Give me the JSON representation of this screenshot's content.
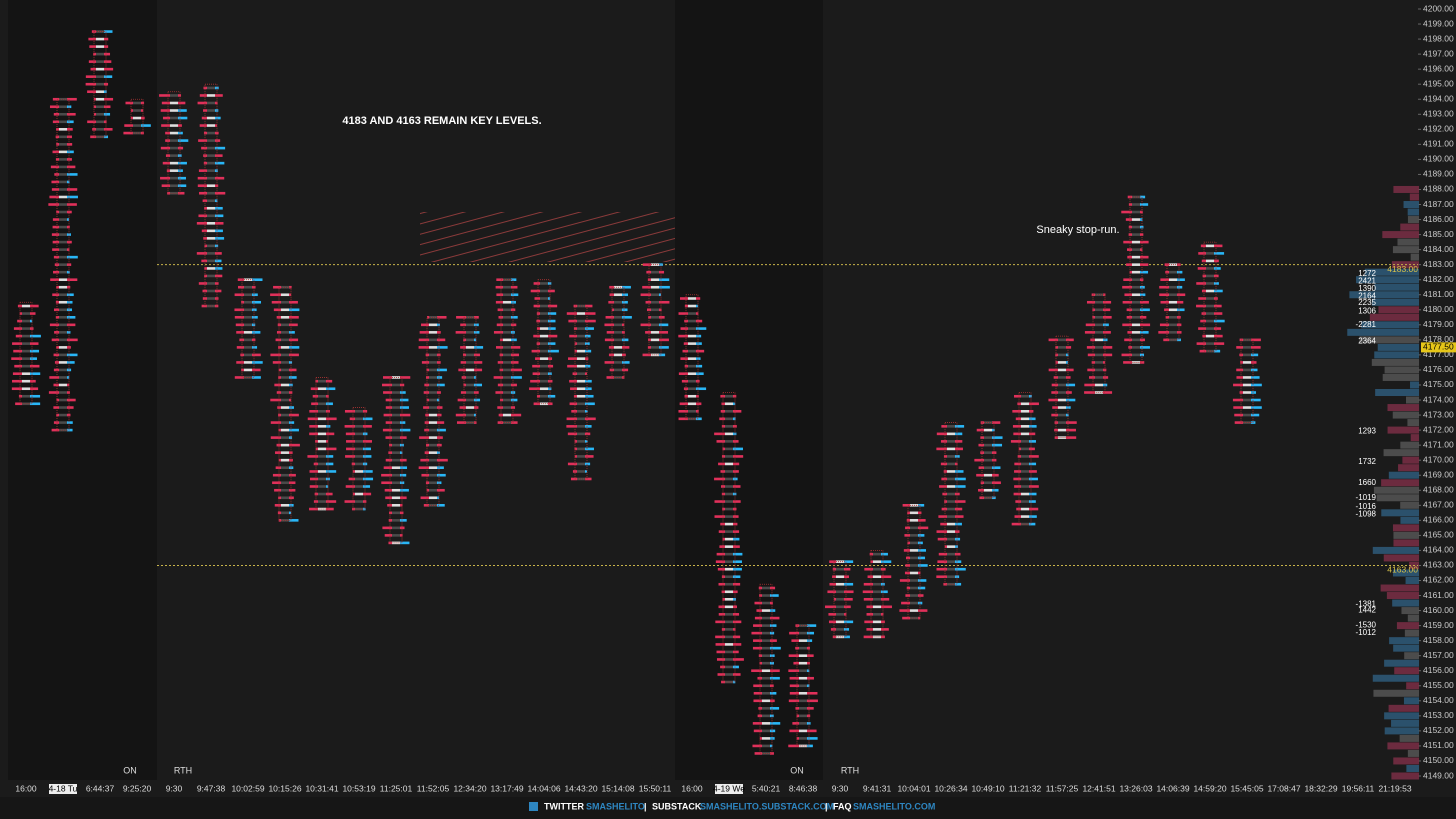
{
  "chart_data": {
    "type": "footprint",
    "ylim": [
      4149,
      4200
    ],
    "yticks": [
      {
        "value": 4149,
        "label": "4149.00"
      },
      {
        "value": 4150,
        "label": "4150.00"
      },
      {
        "value": 4151,
        "label": "4151.00"
      },
      {
        "value": 4152,
        "label": "4152.00"
      },
      {
        "value": 4153,
        "label": "4153.00"
      },
      {
        "value": 4154,
        "label": "4154.00"
      },
      {
        "value": 4155,
        "label": "4155.00"
      },
      {
        "value": 4156,
        "label": "4156.00"
      },
      {
        "value": 4157,
        "label": "4157.00"
      },
      {
        "value": 4158,
        "label": "4158.00"
      },
      {
        "value": 4159,
        "label": "4159.00"
      },
      {
        "value": 4160,
        "label": "4160.00"
      },
      {
        "value": 4161,
        "label": "4161.00"
      },
      {
        "value": 4162,
        "label": "4162.00"
      },
      {
        "value": 4163,
        "label": "4163.00"
      },
      {
        "value": 4164,
        "label": "4164.00"
      },
      {
        "value": 4165,
        "label": "4165.00"
      },
      {
        "value": 4166,
        "label": "4166.00"
      },
      {
        "value": 4167,
        "label": "4167.00"
      },
      {
        "value": 4168,
        "label": "4168.00"
      },
      {
        "value": 4169,
        "label": "4169.00"
      },
      {
        "value": 4170,
        "label": "4170.00"
      },
      {
        "value": 4171,
        "label": "4171.00"
      },
      {
        "value": 4172,
        "label": "4172.00"
      },
      {
        "value": 4173,
        "label": "4173.00"
      },
      {
        "value": 4174,
        "label": "4174.00"
      },
      {
        "value": 4175,
        "label": "4175.00"
      },
      {
        "value": 4176,
        "label": "4176.00"
      },
      {
        "value": 4177,
        "label": "4177.00"
      },
      {
        "value": 4178,
        "label": "4178.00"
      },
      {
        "value": 4179,
        "label": "4179.00"
      },
      {
        "value": 4180,
        "label": "4180.00"
      },
      {
        "value": 4181,
        "label": "4181.00"
      },
      {
        "value": 4182,
        "label": "4182.00"
      },
      {
        "value": 4183,
        "label": "4183.00"
      },
      {
        "value": 4184,
        "label": "4184.00"
      },
      {
        "value": 4185,
        "label": "4185.00"
      },
      {
        "value": 4186,
        "label": "4186.00"
      },
      {
        "value": 4187,
        "label": "4187.00"
      },
      {
        "value": 4188,
        "label": "4188.00"
      },
      {
        "value": 4189,
        "label": "4189.00"
      },
      {
        "value": 4190,
        "label": "4190.00"
      },
      {
        "value": 4191,
        "label": "4191.00"
      },
      {
        "value": 4192,
        "label": "4192.00"
      },
      {
        "value": 4193,
        "label": "4193.00"
      },
      {
        "value": 4194,
        "label": "4194.00"
      },
      {
        "value": 4195,
        "label": "4195.00"
      },
      {
        "value": 4196,
        "label": "4196.00"
      },
      {
        "value": 4197,
        "label": "4197.00"
      },
      {
        "value": 4198,
        "label": "4198.00"
      },
      {
        "value": 4199,
        "label": "4199.00"
      },
      {
        "value": 4200,
        "label": "4200.00"
      }
    ],
    "categories": [
      "16:00",
      "4-18 Tu",
      "6:44:37",
      "9:25:20",
      "9:30",
      "9:47:38",
      "10:02:59",
      "10:15:26",
      "10:31:41",
      "10:53:19",
      "11:25:01",
      "11:52:05",
      "12:34:20",
      "13:17:49",
      "14:04:06",
      "14:43:20",
      "15:14:08",
      "15:50:11",
      "16:00",
      "4-19 We",
      "5:40:21",
      "8:46:38",
      "9:30",
      "9:41:31",
      "10:04:01",
      "10:26:34",
      "10:49:10",
      "11:21:32",
      "11:57:25",
      "12:41:51",
      "13:26:03",
      "14:06:39",
      "14:59:20",
      "15:45:05",
      "17:08:47",
      "18:32:29",
      "19:56:11",
      "21:19:53"
    ],
    "high": [
      4180.5,
      4194,
      4198.5,
      4194,
      4194.5,
      4195,
      4182,
      4181.5,
      4175.5,
      4173.5,
      4175.5,
      4179.5,
      4179.5,
      4182,
      4182,
      4180.25,
      4181.5,
      4183,
      4181,
      4174.5,
      4161.75,
      4159,
      4163.25,
      4164,
      4167,
      4172.5,
      4172.5,
      4174.5,
      4178.25,
      4181,
      4187.5,
      4183,
      4184.5,
      4178,
      null,
      null,
      null,
      null
    ],
    "low": [
      4173.75,
      4172,
      4191.5,
      4191.75,
      4187.75,
      4180.25,
      4175.5,
      4166,
      4166.75,
      4166.75,
      4164.5,
      4167,
      4172.5,
      4172.5,
      4173.75,
      4168.75,
      4175.5,
      4177,
      4172.75,
      4155.25,
      4150.5,
      4151,
      4158.25,
      4158.25,
      4159.5,
      4161.75,
      4167.5,
      4165.75,
      4171.5,
      4174.5,
      4176.5,
      4178,
      4177.25,
      4172.5,
      null,
      null,
      null,
      null
    ],
    "sessions": [
      "ON",
      "RTH",
      "ON",
      "RTH"
    ],
    "key_levels": [
      {
        "value": 4183,
        "label": "4183.00"
      },
      {
        "value": 4163,
        "label": "4163.00"
      }
    ],
    "last_price": {
      "value": 4177.5,
      "label": "4177.50"
    },
    "annotations": [
      "4183 AND 4163 REMAIN KEY LEVELS.",
      "Sneaky stop-run."
    ],
    "profile_labels": [
      {
        "volume": 1272,
        "price": 4182.4
      },
      {
        "volume": 2421,
        "price": 4181.9
      },
      {
        "volume": 1390,
        "price": 4181.4
      },
      {
        "volume": 2164,
        "price": 4180.9
      },
      {
        "volume": 2235,
        "price": 4180.45
      },
      {
        "volume": 1306,
        "price": 4179.9
      },
      {
        "volume": -2281,
        "price": 4179
      },
      {
        "volume": 2364,
        "price": 4177.9
      },
      {
        "volume": 1293,
        "price": 4171.9
      },
      {
        "volume": 1732,
        "price": 4169.9
      },
      {
        "volume": 1660,
        "price": 4168.5
      },
      {
        "volume": -1019,
        "price": 4167.5
      },
      {
        "volume": -1016,
        "price": 4166.9
      },
      {
        "volume": -1098,
        "price": 4166.4
      },
      {
        "volume": -1381,
        "price": 4160.4
      },
      {
        "volume": 1442,
        "price": 4160
      },
      {
        "volume": -1530,
        "price": 4159
      },
      {
        "volume": -1012,
        "price": 4158.5
      }
    ]
  },
  "footer": {
    "separator": "|",
    "items": [
      {
        "label": "TWITTER",
        "handle": "SMASHELITO"
      },
      {
        "label": "SUBSTACK",
        "handle": "SMASHELITO.SUBSTACK.COM"
      },
      {
        "label": "FAQ",
        "handle": "SMASHELITO.COM"
      }
    ]
  }
}
